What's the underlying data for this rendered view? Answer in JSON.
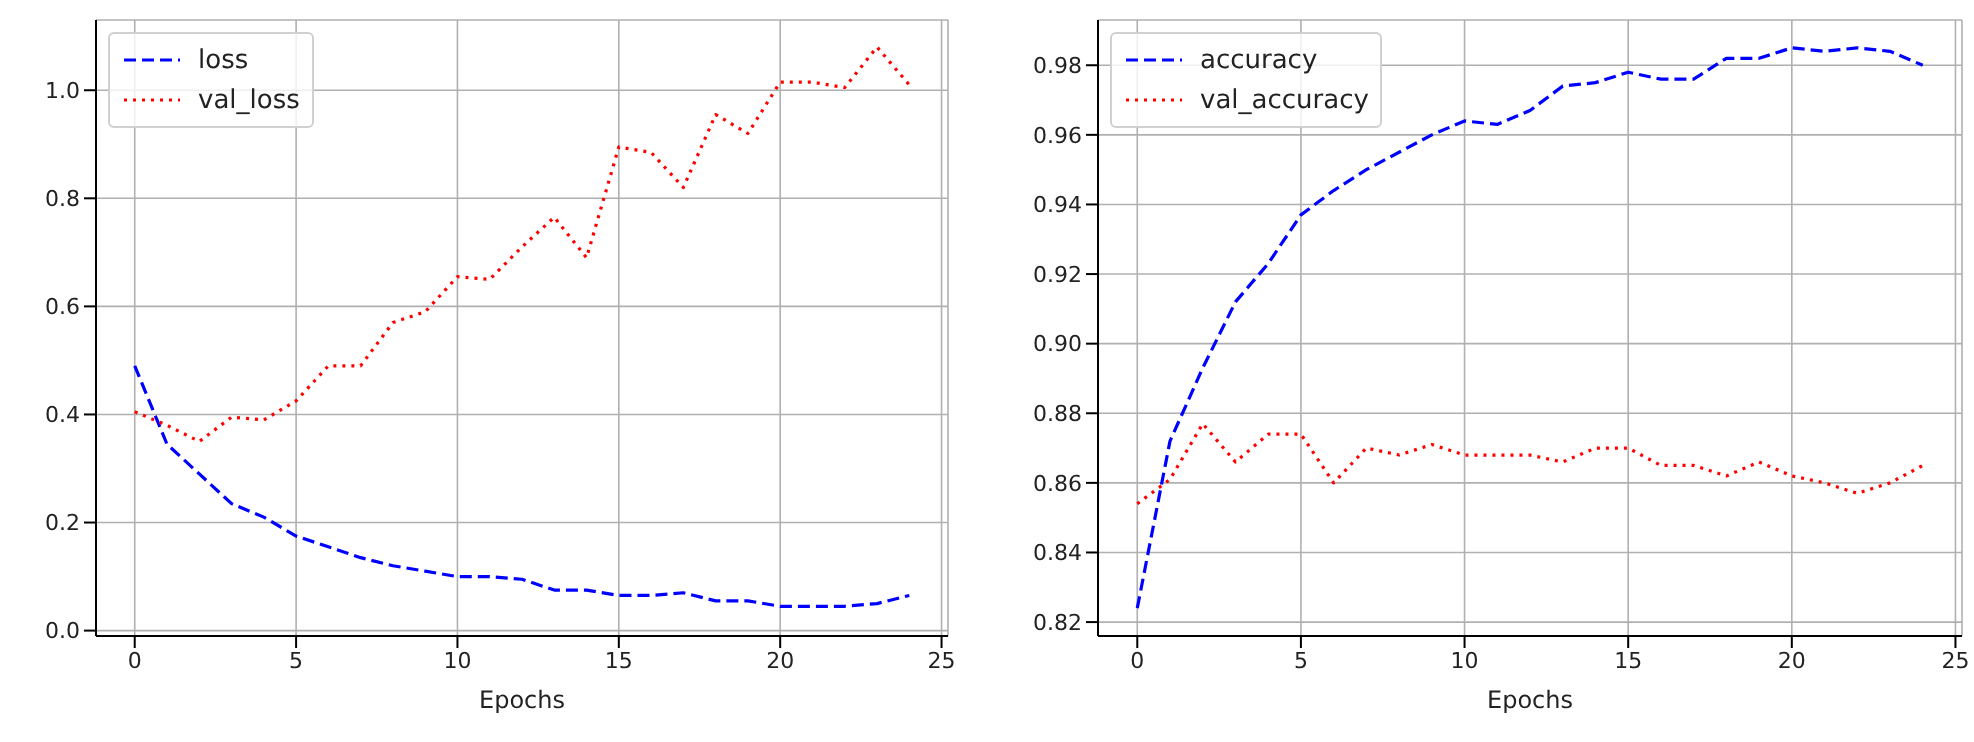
{
  "chart_data": [
    {
      "type": "line",
      "xlabel": "Epochs",
      "x": [
        0,
        1,
        2,
        3,
        4,
        5,
        6,
        7,
        8,
        9,
        10,
        11,
        12,
        13,
        14,
        15,
        16,
        17,
        18,
        19,
        20,
        21,
        22,
        23,
        24
      ],
      "xlim": [
        -1.2,
        25.2
      ],
      "xticks": [
        0,
        5,
        10,
        15,
        20,
        25
      ],
      "ylim": [
        -0.01,
        1.13
      ],
      "yticks": [
        {
          "value": 0,
          "label": "0.0"
        },
        {
          "value": 0.2,
          "label": "0.2"
        },
        {
          "value": 0.4,
          "label": "0.4"
        },
        {
          "value": 0.6,
          "label": "0.6"
        },
        {
          "value": 0.8,
          "label": "0.8"
        },
        {
          "value": 1,
          "label": "1.0"
        }
      ],
      "grid": true,
      "legend": "top left",
      "marker": "none",
      "series": [
        {
          "name": "loss",
          "color": "#0000ff",
          "line_style": "dashed",
          "values": [
            0.49,
            0.345,
            0.29,
            0.235,
            0.21,
            0.175,
            0.155,
            0.135,
            0.12,
            0.11,
            0.1,
            0.1,
            0.095,
            0.075,
            0.075,
            0.065,
            0.065,
            0.07,
            0.055,
            0.055,
            0.045,
            0.045,
            0.045,
            0.05,
            0.065
          ]
        },
        {
          "name": "val_loss",
          "color": "#ff0000",
          "line_style": "dotted",
          "values": [
            0.405,
            0.38,
            0.35,
            0.395,
            0.39,
            0.425,
            0.49,
            0.49,
            0.57,
            0.59,
            0.655,
            0.65,
            0.71,
            0.765,
            0.69,
            0.895,
            0.885,
            0.82,
            0.955,
            0.92,
            1.015,
            1.015,
            1.005,
            1.08,
            1.01
          ]
        }
      ]
    },
    {
      "type": "line",
      "xlabel": "Epochs",
      "x": [
        0,
        1,
        2,
        3,
        4,
        5,
        6,
        7,
        8,
        9,
        10,
        11,
        12,
        13,
        14,
        15,
        16,
        17,
        18,
        19,
        20,
        21,
        22,
        23,
        24
      ],
      "xlim": [
        -1.2,
        25.2
      ],
      "xticks": [
        0,
        5,
        10,
        15,
        20,
        25
      ],
      "ylim": [
        0.816,
        0.993
      ],
      "yticks": [
        {
          "value": 0.82,
          "label": "0.82"
        },
        {
          "value": 0.84,
          "label": "0.84"
        },
        {
          "value": 0.86,
          "label": "0.86"
        },
        {
          "value": 0.88,
          "label": "0.88"
        },
        {
          "value": 0.9,
          "label": "0.90"
        },
        {
          "value": 0.92,
          "label": "0.92"
        },
        {
          "value": 0.94,
          "label": "0.94"
        },
        {
          "value": 0.96,
          "label": "0.96"
        },
        {
          "value": 0.98,
          "label": "0.98"
        }
      ],
      "grid": true,
      "legend": "top left",
      "marker": "none",
      "series": [
        {
          "name": "accuracy",
          "color": "#0000ff",
          "line_style": "dashed",
          "values": [
            0.824,
            0.872,
            0.893,
            0.912,
            0.923,
            0.937,
            0.944,
            0.95,
            0.955,
            0.96,
            0.964,
            0.963,
            0.967,
            0.974,
            0.975,
            0.978,
            0.976,
            0.976,
            0.982,
            0.982,
            0.985,
            0.984,
            0.985,
            0.984,
            0.98
          ]
        },
        {
          "name": "val_accuracy",
          "color": "#ff0000",
          "line_style": "dotted",
          "values": [
            0.854,
            0.861,
            0.877,
            0.866,
            0.874,
            0.874,
            0.86,
            0.87,
            0.868,
            0.871,
            0.868,
            0.868,
            0.868,
            0.866,
            0.87,
            0.87,
            0.865,
            0.865,
            0.862,
            0.866,
            0.862,
            0.86,
            0.857,
            0.86,
            0.865
          ]
        }
      ]
    }
  ]
}
